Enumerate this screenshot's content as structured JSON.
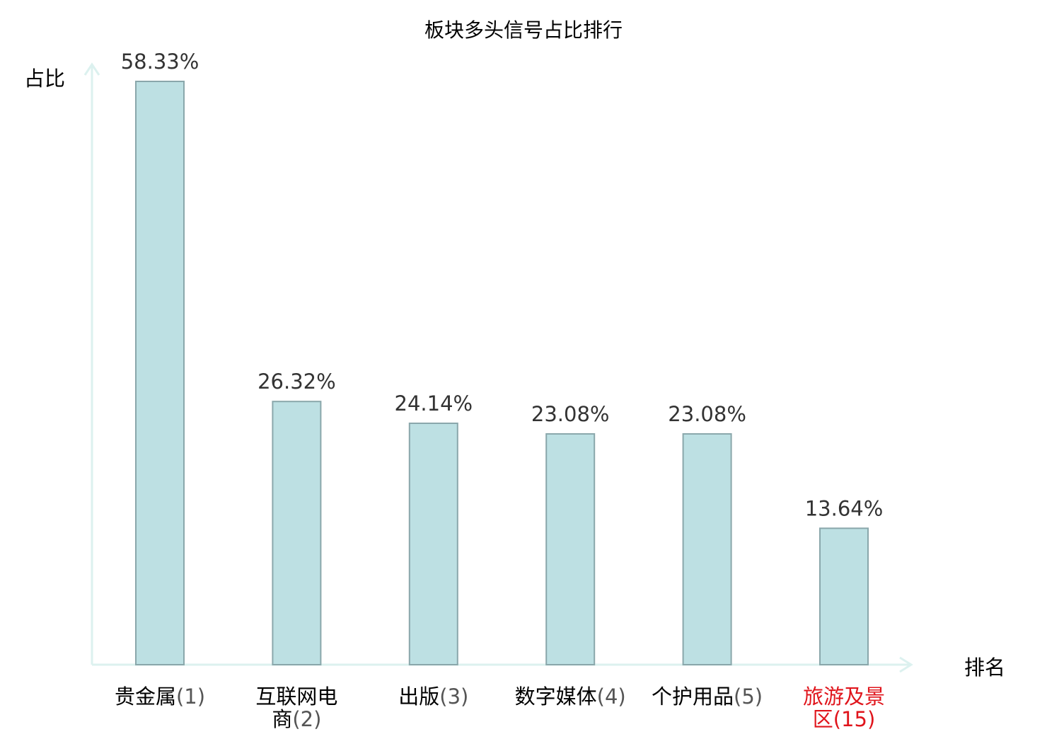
{
  "chart_data": {
    "type": "bar",
    "title": "板块多头信号占比排行",
    "xlabel": "排名",
    "ylabel": "占比",
    "categories": [
      {
        "name": [
          "贵金属"
        ],
        "rank": "(1)",
        "highlight": false
      },
      {
        "name": [
          "互联网电",
          "商"
        ],
        "rank": "(2)",
        "highlight": false
      },
      {
        "name": [
          "出版"
        ],
        "rank": "(3)",
        "highlight": false
      },
      {
        "name": [
          "数字媒体"
        ],
        "rank": "(4)",
        "highlight": false
      },
      {
        "name": [
          "个护用品"
        ],
        "rank": "(5)",
        "highlight": false
      },
      {
        "name": [
          "旅游及景",
          "区"
        ],
        "rank": "(15)",
        "highlight": true
      }
    ],
    "values": [
      58.33,
      26.32,
      24.14,
      23.08,
      23.08,
      13.64
    ],
    "value_labels": [
      "58.33%",
      "26.32%",
      "24.14%",
      "23.08%",
      "23.08%",
      "13.64%"
    ],
    "ylim": [
      0,
      58.33
    ],
    "grid": false,
    "legend": "none",
    "colors": {
      "bar_fill": "#bde0e3",
      "bar_stroke": "#8aa7ab",
      "axis": "#dcf1ef",
      "text": "#000000",
      "value_text": "#333333",
      "rank_text": "#555555",
      "highlight": "#e0151c"
    }
  }
}
